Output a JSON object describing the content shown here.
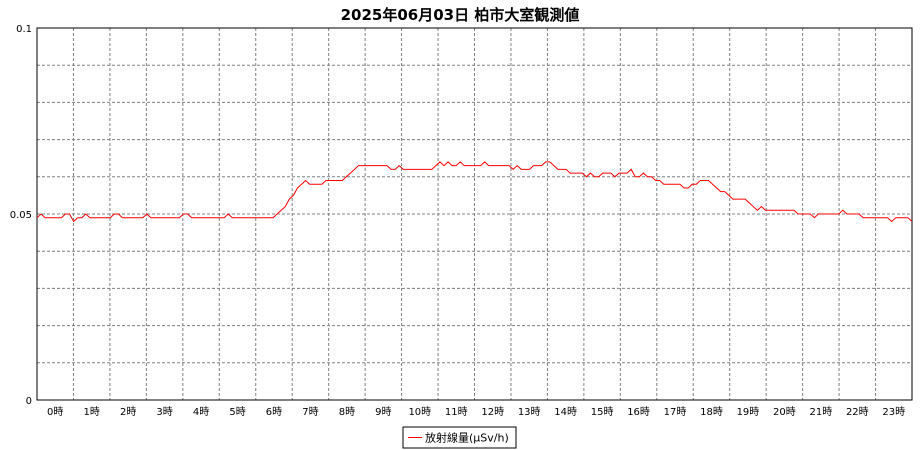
{
  "chart_data": {
    "type": "line",
    "title": "2025年06月03日 柏市大室観測値",
    "xlabel": "",
    "ylabel": "",
    "ylim": [
      0,
      0.1
    ],
    "yticks": [
      "0",
      "0.05",
      "0.1"
    ],
    "xticks": [
      "0時",
      "1時",
      "2時",
      "3時",
      "4時",
      "5時",
      "6時",
      "7時",
      "8時",
      "9時",
      "10時",
      "11時",
      "12時",
      "13時",
      "14時",
      "15時",
      "16時",
      "17時",
      "18時",
      "19時",
      "20時",
      "21時",
      "22時",
      "23時"
    ],
    "grid": true,
    "legend_position": "bottom-center",
    "line_color": "#ff0000",
    "series": [
      {
        "name": "放射線量(μSv/h)",
        "values": [
          0.049,
          0.05,
          0.049,
          0.049,
          0.049,
          0.049,
          0.049,
          0.05,
          0.05,
          0.048,
          0.049,
          0.049,
          0.05,
          0.049,
          0.049,
          0.049,
          0.049,
          0.049,
          0.049,
          0.05,
          0.05,
          0.049,
          0.049,
          0.049,
          0.049,
          0.049,
          0.049,
          0.05,
          0.049,
          0.049,
          0.049,
          0.049,
          0.049,
          0.049,
          0.049,
          0.049,
          0.05,
          0.05,
          0.049,
          0.049,
          0.049,
          0.049,
          0.049,
          0.049,
          0.049,
          0.049,
          0.049,
          0.05,
          0.049,
          0.049,
          0.049,
          0.049,
          0.049,
          0.049,
          0.049,
          0.049,
          0.049,
          0.049,
          0.049,
          0.05,
          0.051,
          0.052,
          0.054,
          0.055,
          0.057,
          0.058,
          0.059,
          0.058,
          0.058,
          0.058,
          0.058,
          0.059,
          0.059,
          0.059,
          0.059,
          0.059,
          0.06,
          0.061,
          0.062,
          0.063,
          0.063,
          0.063,
          0.063,
          0.063,
          0.063,
          0.063,
          0.063,
          0.062,
          0.062,
          0.063,
          0.062,
          0.062,
          0.062,
          0.062,
          0.062,
          0.062,
          0.062,
          0.062,
          0.063,
          0.064,
          0.063,
          0.064,
          0.063,
          0.063,
          0.064,
          0.063,
          0.063,
          0.063,
          0.063,
          0.063,
          0.064,
          0.063,
          0.063,
          0.063,
          0.063,
          0.063,
          0.063,
          0.062,
          0.063,
          0.062,
          0.062,
          0.062,
          0.063,
          0.063,
          0.063,
          0.064,
          0.064,
          0.063,
          0.062,
          0.062,
          0.062,
          0.061,
          0.061,
          0.061,
          0.061,
          0.06,
          0.061,
          0.06,
          0.06,
          0.061,
          0.061,
          0.061,
          0.06,
          0.061,
          0.061,
          0.061,
          0.062,
          0.06,
          0.06,
          0.061,
          0.06,
          0.06,
          0.059,
          0.059,
          0.058,
          0.058,
          0.058,
          0.058,
          0.058,
          0.057,
          0.057,
          0.058,
          0.058,
          0.059,
          0.059,
          0.059,
          0.058,
          0.057,
          0.056,
          0.056,
          0.055,
          0.054,
          0.054,
          0.054,
          0.054,
          0.053,
          0.052,
          0.051,
          0.052,
          0.051,
          0.051,
          0.051,
          0.051,
          0.051,
          0.051,
          0.051,
          0.051,
          0.05,
          0.05,
          0.05,
          0.05,
          0.049,
          0.05,
          0.05,
          0.05,
          0.05,
          0.05,
          0.05,
          0.051,
          0.05,
          0.05,
          0.05,
          0.05,
          0.049,
          0.049,
          0.049,
          0.049,
          0.049,
          0.049,
          0.049,
          0.048,
          0.049,
          0.049,
          0.049,
          0.049,
          0.048
        ]
      }
    ]
  }
}
